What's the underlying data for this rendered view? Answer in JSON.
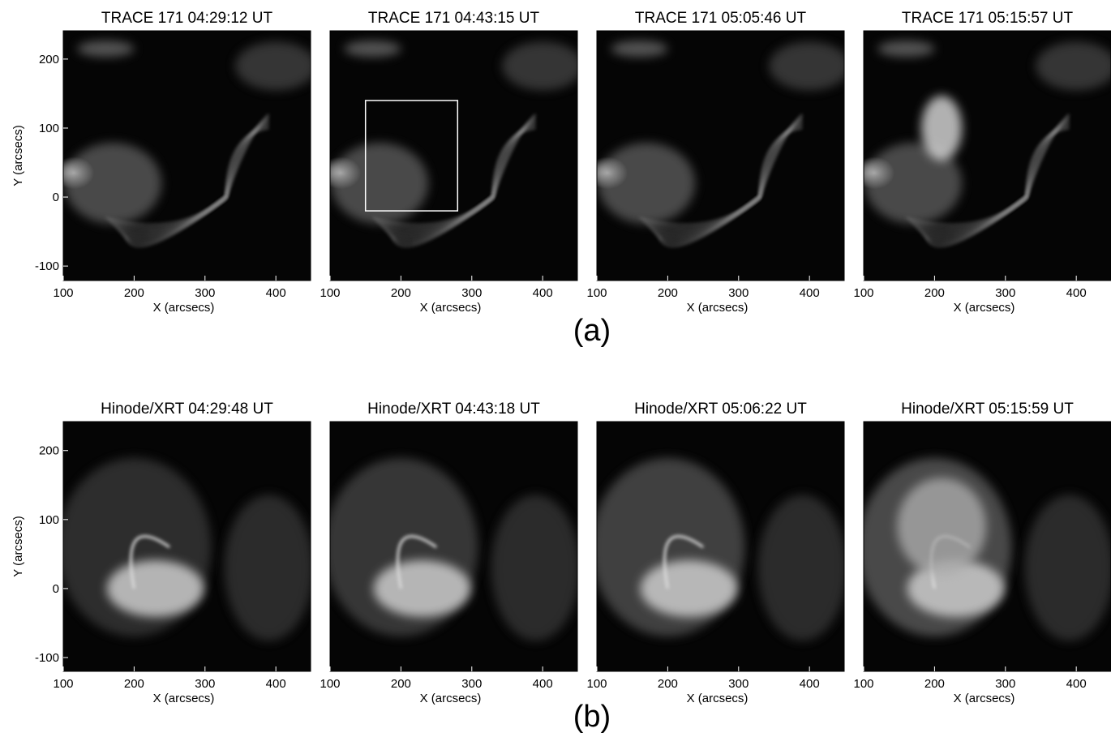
{
  "chart_data": [
    {
      "type": "image",
      "title": "TRACE 171 04:29:12 UT",
      "xlabel": "X (arcsecs)",
      "ylabel": "Y (arcsecs)",
      "xlim": [
        100,
        449
      ],
      "ylim": [
        -121,
        241
      ],
      "xticks": [
        100,
        200,
        300,
        400
      ],
      "yticks": [
        -100,
        0,
        100,
        200
      ]
    },
    {
      "type": "image",
      "title": "TRACE 171 04:43:15 UT",
      "xlabel": "X (arcsecs)",
      "xlim": [
        100,
        449
      ],
      "ylim": [
        -121,
        241
      ],
      "xticks": [
        100,
        200,
        300,
        400
      ],
      "box": {
        "x": [
          150,
          280
        ],
        "y": [
          -20,
          140
        ]
      }
    },
    {
      "type": "image",
      "title": "TRACE 171 05:05:46 UT",
      "xlabel": "X (arcsecs)",
      "xlim": [
        100,
        449
      ],
      "ylim": [
        -121,
        241
      ],
      "xticks": [
        100,
        200,
        300,
        400
      ]
    },
    {
      "type": "image",
      "title": "TRACE 171 05:15:57 UT",
      "xlabel": "X (arcsecs)",
      "xlim": [
        100,
        449
      ],
      "ylim": [
        -121,
        241
      ],
      "xticks": [
        100,
        200,
        300,
        400
      ]
    },
    {
      "type": "image",
      "title": "Hinode/XRT 04:29:48 UT",
      "xlabel": "X (arcsecs)",
      "ylabel": "Y (arcsecs)",
      "xlim": [
        100,
        449
      ],
      "ylim": [
        -120,
        242
      ],
      "xticks": [
        100,
        200,
        300,
        400
      ],
      "yticks": [
        -100,
        0,
        100,
        200
      ]
    },
    {
      "type": "image",
      "title": "Hinode/XRT 04:43:18 UT",
      "xlabel": "X (arcsecs)",
      "xlim": [
        100,
        449
      ],
      "ylim": [
        -120,
        242
      ],
      "xticks": [
        100,
        200,
        300,
        400
      ]
    },
    {
      "type": "image",
      "title": "Hinode/XRT 05:06:22 UT",
      "xlabel": "X (arcsecs)",
      "xlim": [
        100,
        449
      ],
      "ylim": [
        -120,
        242
      ],
      "xticks": [
        100,
        200,
        300,
        400
      ]
    },
    {
      "type": "image",
      "title": "Hinode/XRT 05:15:59 UT",
      "xlabel": "X (arcsecs)",
      "xlim": [
        100,
        449
      ],
      "ylim": [
        -120,
        242
      ],
      "xticks": [
        100,
        200,
        300,
        400
      ]
    }
  ],
  "panel_labels": [
    "(a)",
    "(b)"
  ]
}
